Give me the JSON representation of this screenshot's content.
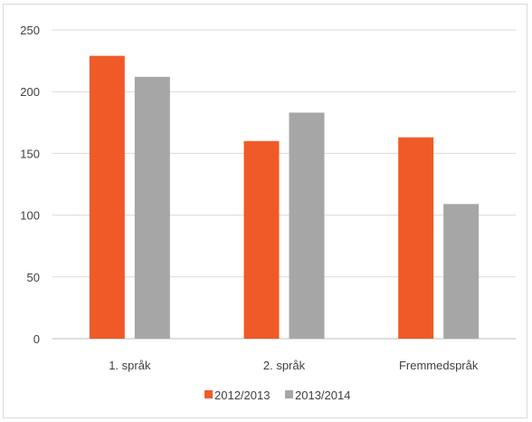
{
  "chart_data": {
    "type": "bar",
    "categories": [
      "1. språk",
      "2. språk",
      "Fremmedspråk"
    ],
    "series": [
      {
        "name": "2012/2013",
        "color": "#ef5a28",
        "values": [
          229,
          160,
          163
        ]
      },
      {
        "name": "2013/2014",
        "color": "#a6a6a7",
        "values": [
          212,
          183,
          109
        ]
      }
    ],
    "title": "",
    "xlabel": "",
    "ylabel": "",
    "ylim": [
      0,
      250
    ],
    "yticks": [
      0,
      50,
      100,
      150,
      200,
      250
    ],
    "grid": true,
    "legend_position": "bottom"
  }
}
